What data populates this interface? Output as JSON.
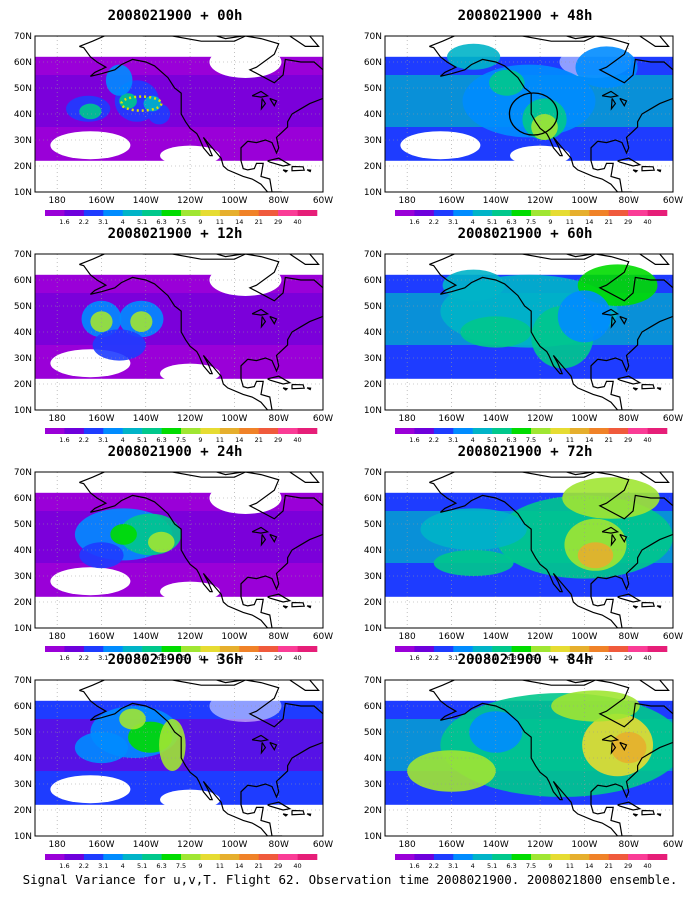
{
  "lat_labels": [
    "70N",
    "60N",
    "50N",
    "40N",
    "30N",
    "20N",
    "10N"
  ],
  "lon_labels": [
    "180",
    "160W",
    "140W",
    "120W",
    "100W",
    "80W",
    "60W"
  ],
  "colorbar": {
    "labels": [
      "1.6",
      "2.2",
      "3.1",
      "4",
      "5.1",
      "6.3",
      "7.5",
      "9",
      "11",
      "14",
      "21",
      "29",
      "40"
    ],
    "colors": [
      "#9a00d8",
      "#6e00dc",
      "#1e3cff",
      "#008cff",
      "#00b4c8",
      "#00c88c",
      "#00dc00",
      "#a0e632",
      "#e6dc32",
      "#e6af2d",
      "#f08228",
      "#f05a3c",
      "#fa3c96",
      "#e61e78"
    ]
  },
  "panels": [
    {
      "title": "2008021900 + 00h",
      "level": 0,
      "annotation": "dotted-oval"
    },
    {
      "title": "2008021900 + 48h",
      "level": 4,
      "annotation": "circle"
    },
    {
      "title": "2008021900 + 12h",
      "level": 1,
      "annotation": "none"
    },
    {
      "title": "2008021900 + 60h",
      "level": 5,
      "annotation": "none"
    },
    {
      "title": "2008021900 + 24h",
      "level": 2,
      "annotation": "none"
    },
    {
      "title": "2008021900 + 72h",
      "level": 6,
      "annotation": "none"
    },
    {
      "title": "2008021900 + 36h",
      "level": 3,
      "annotation": "none"
    },
    {
      "title": "2008021900 + 84h",
      "level": 7,
      "annotation": "none"
    }
  ],
  "footer": "Signal Variance for u,v,T. Flight 62. Observation time 2008021900. 2008021800 ensemble."
}
